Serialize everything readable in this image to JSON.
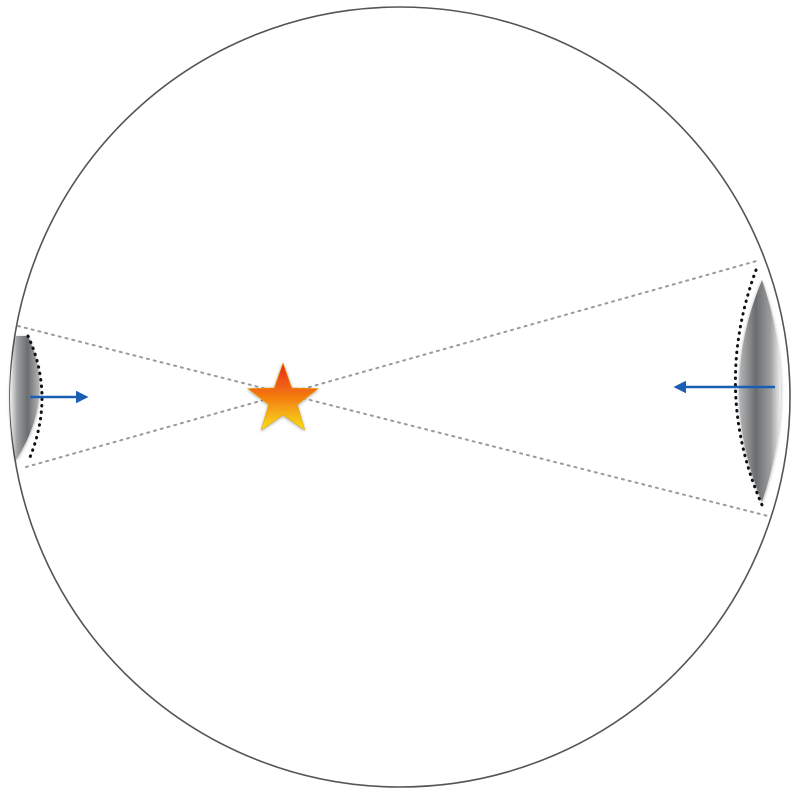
{
  "diagram": {
    "colors": {
      "background": "#ffffff",
      "circle_outline": "#555555",
      "sight_lines": "#9a9a9a",
      "dotted_rim": "#111111",
      "arrow": "#1a5fb4",
      "star_top": "#e8281c",
      "star_mid": "#f47a10",
      "star_bottom": "#f7e21a",
      "lens_dark": "#6a6c6e",
      "lens_light": "#f2f2f2"
    },
    "icons": {
      "center": "star-icon",
      "left_flow": "arrow-right-icon",
      "right_flow": "arrow-left-icon"
    }
  }
}
